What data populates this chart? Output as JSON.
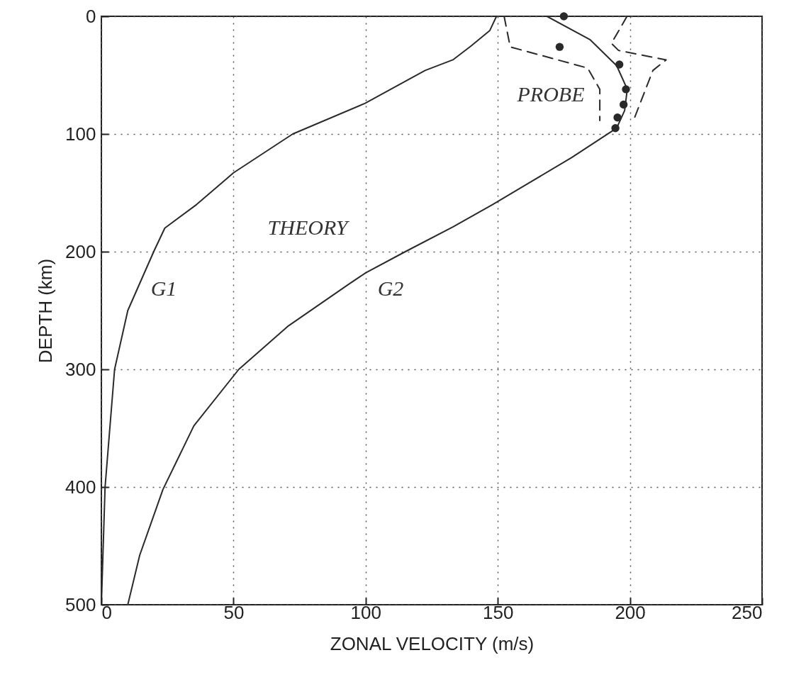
{
  "chart_data": {
    "type": "line",
    "xlabel": "ZONAL VELOCITY (m/s)",
    "ylabel": "DEPTH (km)",
    "xlim": [
      0,
      250
    ],
    "xticks": [
      0,
      50,
      100,
      150,
      200,
      250
    ],
    "ylim": [
      500,
      0
    ],
    "yticks": [
      0,
      100,
      200,
      300,
      400,
      500
    ],
    "grid": true,
    "series": [
      {
        "name": "G1",
        "color": "#2a2a2a",
        "x": [
          149.5,
          147,
          140,
          133,
          122.5,
          99.7,
          72.4,
          50,
          36,
          24,
          19.8,
          10,
          5,
          1.4,
          0
        ],
        "values": [
          0,
          12,
          25,
          37,
          46,
          74,
          100,
          133,
          160,
          180,
          200,
          250,
          300,
          400,
          500
        ]
      },
      {
        "name": "G2",
        "color": "#2a2a2a",
        "x": [
          168.6,
          185,
          195,
          199,
          198,
          195,
          178,
          163,
          148,
          133,
          115,
          100,
          94,
          70.8,
          52,
          35,
          23.3,
          14.5,
          10
        ],
        "values": [
          0,
          20,
          42,
          62,
          80,
          95,
          120,
          140,
          160,
          179,
          200,
          218,
          227,
          263,
          300,
          348,
          402,
          458,
          500
        ]
      },
      {
        "color": "#2a2a2a",
        "line_style": "dashed",
        "x": [
          152.4,
          154.7,
          184,
          188.6,
          188.6
        ],
        "values": [
          0,
          26,
          44,
          62,
          88.5
        ]
      },
      {
        "color": "#2a2a2a",
        "line_style": "dashed",
        "x": [
          198.9,
          193,
          195.7,
          213.7,
          208.7,
          201
        ],
        "values": [
          0,
          23,
          29,
          37,
          46,
          90.5
        ]
      },
      {
        "type": "scatter",
        "color": "#2a2a2a",
        "marker": "circle",
        "x": [
          175,
          173.4,
          196,
          198.5,
          197.6,
          195.3,
          194.5
        ],
        "values": [
          0,
          26,
          41,
          62,
          75,
          86,
          95
        ]
      }
    ],
    "annotations": [
      "PROBE",
      "THEORY"
    ]
  }
}
